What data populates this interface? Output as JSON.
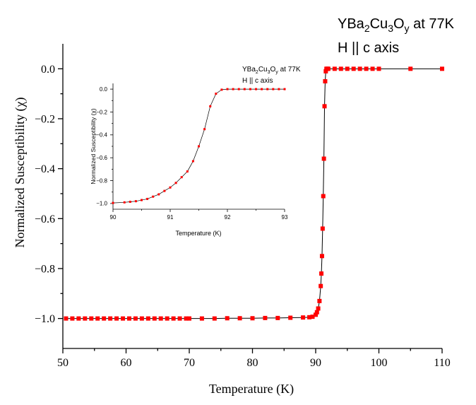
{
  "colors": {
    "marker": "#ff0000",
    "line": "#000000",
    "axis": "#000000",
    "background": "#ffffff"
  },
  "chart_data": [
    {
      "type": "scatter",
      "title": "",
      "annotation": {
        "line1": {
          "base1": "YBa",
          "sub1": "2",
          "base2": "Cu",
          "sub2": "3",
          "base3": "O",
          "sub3": "y",
          "tail": " at 77K"
        },
        "line2": "H || c axis"
      },
      "xlabel": "Temperature (K)",
      "ylabel": "Normalized Susceptibility (χ)",
      "xlim": [
        50,
        110
      ],
      "ylim": [
        -1.12,
        0.1
      ],
      "xticks": [
        "50",
        "60",
        "70",
        "80",
        "90",
        "100",
        "110"
      ],
      "yticks": [
        "0.0",
        "−0.2",
        "−0.4",
        "−0.6",
        "−0.8",
        "−1.0"
      ],
      "grid": false,
      "legend": "none",
      "series": [
        {
          "x": [
            50.5,
            51.5,
            52.5,
            53.5,
            54.5,
            55.5,
            56.5,
            57.5,
            58.5,
            59.5,
            60.5,
            61.5,
            62.5,
            63.5,
            64.5,
            65.5,
            66.5,
            67.5,
            68.5,
            69.5,
            70,
            72,
            74,
            76,
            78,
            80,
            82,
            84,
            86,
            88,
            89,
            89.5,
            90,
            90.2,
            90.4,
            90.6,
            90.8,
            90.9,
            91.0,
            91.1,
            91.2,
            91.3,
            91.4,
            91.5,
            91.6,
            91.7,
            91.8,
            91.9,
            92.0,
            93,
            94,
            95,
            96,
            97,
            98,
            99,
            100,
            105,
            110
          ],
          "y": [
            -1.0,
            -1.0,
            -1.0,
            -1.0,
            -1.0,
            -1.0,
            -1.0,
            -1.0,
            -1.0,
            -1.0,
            -1.0,
            -1.0,
            -1.0,
            -1.0,
            -1.0,
            -1.0,
            -1.0,
            -1.0,
            -1.0,
            -1.0,
            -1.0,
            -1.0,
            -1.0,
            -0.999,
            -0.999,
            -0.999,
            -0.998,
            -0.998,
            -0.997,
            -0.996,
            -0.995,
            -0.993,
            -0.985,
            -0.975,
            -0.96,
            -0.93,
            -0.87,
            -0.82,
            -0.75,
            -0.64,
            -0.51,
            -0.36,
            -0.15,
            -0.05,
            -0.01,
            0.0,
            0.0,
            0.0,
            0.0,
            0.0,
            0.0,
            0.0,
            0.0,
            0.0,
            0.0,
            0.0,
            0.0,
            0.0,
            0.0
          ]
        }
      ]
    },
    {
      "type": "scatter",
      "title": "",
      "annotation": {
        "line1": {
          "base1": "YBa",
          "sub1": "2",
          "base2": "Cu",
          "sub2": "3",
          "base3": "O",
          "sub3": "y",
          "tail": " at 77K"
        },
        "line2": "H || c axis"
      },
      "xlabel": "Temperature (K)",
      "ylabel": "Normalized Susceptibility (χ)",
      "xlim": [
        90,
        93
      ],
      "ylim": [
        -1.05,
        0.05
      ],
      "xticks": [
        "90",
        "91",
        "92",
        "93"
      ],
      "yticks": [
        "0.0",
        "−0.2",
        "−0.4",
        "−0.6",
        "−0.8",
        "−1.0"
      ],
      "grid": false,
      "legend": "none",
      "series": [
        {
          "x": [
            90.0,
            90.2,
            90.3,
            90.4,
            90.5,
            90.6,
            90.7,
            90.8,
            90.9,
            91.0,
            91.1,
            91.2,
            91.3,
            91.4,
            91.5,
            91.6,
            91.7,
            91.8,
            91.9,
            92.0,
            92.1,
            92.2,
            92.3,
            92.4,
            92.5,
            92.6,
            92.7,
            92.8,
            92.9,
            93.0
          ],
          "y": [
            -0.995,
            -0.99,
            -0.985,
            -0.98,
            -0.97,
            -0.96,
            -0.94,
            -0.92,
            -0.89,
            -0.86,
            -0.82,
            -0.77,
            -0.72,
            -0.63,
            -0.5,
            -0.35,
            -0.15,
            -0.04,
            -0.005,
            0.0,
            0.0,
            0.0,
            0.0,
            0.0,
            0.0,
            0.0,
            0.0,
            0.0,
            0.0,
            0.0
          ]
        }
      ]
    }
  ]
}
